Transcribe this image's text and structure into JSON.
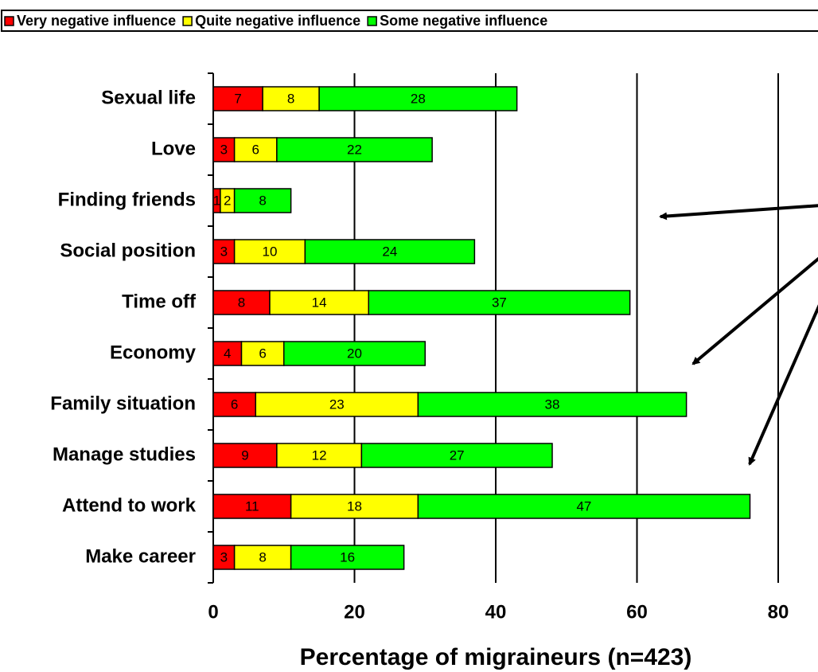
{
  "chart_data": {
    "type": "bar",
    "orientation": "horizontal",
    "stacked": true,
    "x_label": "Percentage of migraineurs (n=423)",
    "categories": [
      "Sexual life",
      "Love",
      "Finding friends",
      "Social position",
      "Time off",
      "Economy",
      "Family situation",
      "Manage studies",
      "Attend to work",
      "Make career"
    ],
    "series": [
      {
        "name": "Very negative influence",
        "color": "#ff0000",
        "values": [
          7,
          3,
          1,
          3,
          8,
          4,
          6,
          9,
          11,
          3
        ]
      },
      {
        "name": "Quite negative influence",
        "color": "#ffff00",
        "values": [
          8,
          6,
          2,
          10,
          14,
          6,
          23,
          12,
          18,
          8
        ]
      },
      {
        "name": "Some negative influence",
        "color": "#00ff00",
        "values": [
          28,
          22,
          8,
          24,
          37,
          20,
          38,
          27,
          47,
          16
        ]
      }
    ],
    "xlim": [
      0,
      80
    ],
    "xticks": [
      0,
      20,
      40,
      60,
      80
    ],
    "grid": true,
    "legend": "top"
  }
}
